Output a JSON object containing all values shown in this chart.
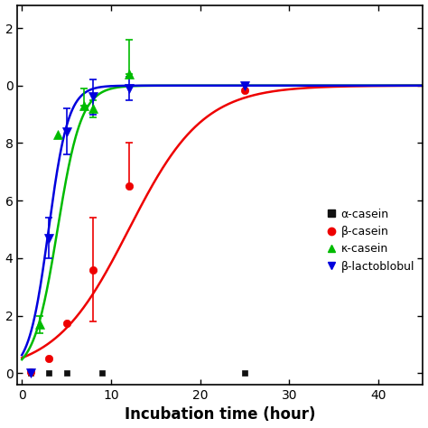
{
  "xlabel": "Incubation time (hour)",
  "xlim": [
    -0.5,
    45
  ],
  "ylim": [
    -0.04,
    1.28
  ],
  "xticks": [
    0,
    10,
    20,
    30,
    40
  ],
  "yticks": [
    0.0,
    0.2,
    0.4,
    0.6,
    0.8,
    1.0,
    1.2
  ],
  "ytick_labels": [
    "0",
    "2",
    "4",
    "6",
    "8",
    "0",
    "2"
  ],
  "series": [
    {
      "label": "α-casein",
      "color": "#111111",
      "marker": "s",
      "markersize": 5,
      "line": false,
      "x": [
        1,
        3,
        5,
        9,
        25
      ],
      "y": [
        0.0,
        0.0,
        0.0,
        0.0,
        0.0
      ],
      "yerr_lo": [
        0,
        0,
        0,
        0,
        0
      ],
      "yerr_hi": [
        0,
        0,
        0,
        0,
        0
      ]
    },
    {
      "label": "β-casein",
      "color": "#ee0000",
      "marker": "o",
      "markersize": 6,
      "line": true,
      "x": [
        1,
        3,
        5,
        8,
        12,
        25
      ],
      "y": [
        0.005,
        0.05,
        0.175,
        0.36,
        0.65,
        0.985
      ],
      "yerr_lo": [
        0,
        0,
        0,
        0.18,
        0,
        0
      ],
      "yerr_hi": [
        0,
        0,
        0,
        0.18,
        0.15,
        0
      ],
      "fit_L": 1.0,
      "fit_k": 0.24,
      "fit_x0": 12.0
    },
    {
      "label": "κ-casein",
      "color": "#00bb00",
      "marker": "^",
      "markersize": 7,
      "line": true,
      "x": [
        2,
        4,
        7,
        8,
        12
      ],
      "y": [
        0.17,
        0.83,
        0.93,
        0.92,
        1.04
      ],
      "yerr_lo": [
        0.03,
        0,
        0,
        0.03,
        0
      ],
      "yerr_hi": [
        0.03,
        0,
        0.06,
        0.03,
        0.12
      ],
      "fit_L": 1.0,
      "fit_k": 0.75,
      "fit_x0": 4.0
    },
    {
      "label": "β-lactoblobul",
      "color": "#0000dd",
      "marker": "v",
      "markersize": 7,
      "line": true,
      "x": [
        1,
        3,
        5,
        8,
        12,
        25
      ],
      "y": [
        0.0,
        0.47,
        0.84,
        0.96,
        0.99,
        1.0
      ],
      "yerr_lo": [
        0,
        0.07,
        0.08,
        0.06,
        0.04,
        0
      ],
      "yerr_hi": [
        0,
        0.07,
        0.08,
        0.06,
        0.04,
        0
      ],
      "fit_L": 1.0,
      "fit_k": 0.9,
      "fit_x0": 3.0
    }
  ],
  "legend_entries": [
    {
      "label": "α-casein",
      "color": "#111111",
      "marker": "s"
    },
    {
      "label": "β-casein",
      "color": "#ee0000",
      "marker": "o"
    },
    {
      "label": "κ-casein",
      "color": "#00bb00",
      "marker": "^"
    },
    {
      "label": "β-lactoblobul",
      "color": "#0000dd",
      "marker": "v"
    }
  ],
  "background_color": "#ffffff"
}
